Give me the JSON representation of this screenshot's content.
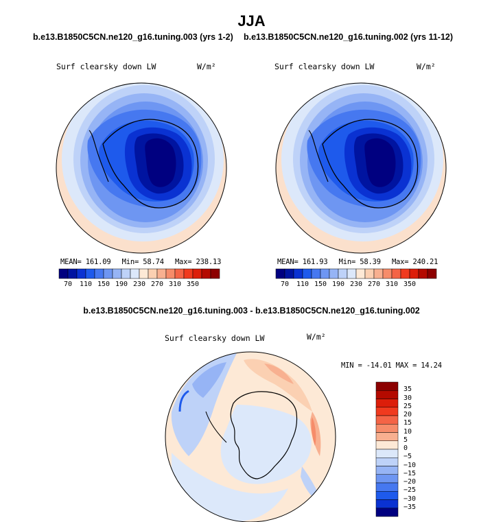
{
  "figure": {
    "title": "JJA",
    "variable": "Surf clearsky down LW",
    "units": "W/m²",
    "diff_title": "b.e13.B1850C5CN.ne120_g16.tuning.003 - b.e13.B1850C5CN.ne120_g16.tuning.002"
  },
  "panels": [
    {
      "case_title": "b.e13.B1850C5CN.ne120_g16.tuning.003 (yrs 1-2)",
      "mean_label": "MEAN= 161.09",
      "min_label": "Min=  58.74",
      "max_label": "Max= 238.13"
    },
    {
      "case_title": "b.e13.B1850C5CN.ne120_g16.tuning.002 (yrs 11-12)",
      "mean_label": "MEAN= 161.93",
      "min_label": "Min=  58.39",
      "max_label": "Max= 240.21"
    }
  ],
  "diff_panel": {
    "minmax_label": "MIN = -14.01 MAX =  14.24"
  },
  "colorbar_main": {
    "labels": [
      "70",
      "110",
      "150",
      "190",
      "230",
      "270",
      "310",
      "350"
    ],
    "colors": [
      "#000080",
      "#0014a0",
      "#0a32d2",
      "#1e5aec",
      "#4678f0",
      "#6e96f2",
      "#96b4f5",
      "#bed2f8",
      "#dce8fa",
      "#fde9d6",
      "#fbd0b2",
      "#f8b090",
      "#f68c6a",
      "#f46446",
      "#f03a1e",
      "#dc1e0a",
      "#b40a00",
      "#8c0000"
    ]
  },
  "colorbar_diff": {
    "labels": [
      "35",
      "30",
      "25",
      "20",
      "15",
      "10",
      "5",
      "0",
      "−5",
      "−10",
      "−15",
      "−20",
      "−25",
      "−30",
      "−35"
    ],
    "colors": [
      "#8c0000",
      "#b40a00",
      "#dc1e0a",
      "#f03a1e",
      "#f46446",
      "#f68c6a",
      "#f8b090",
      "#fde9d6",
      "#dce8fa",
      "#bed2f8",
      "#96b4f5",
      "#6e96f2",
      "#4678f0",
      "#1e5aec",
      "#0a32d2",
      "#000080"
    ]
  }
}
